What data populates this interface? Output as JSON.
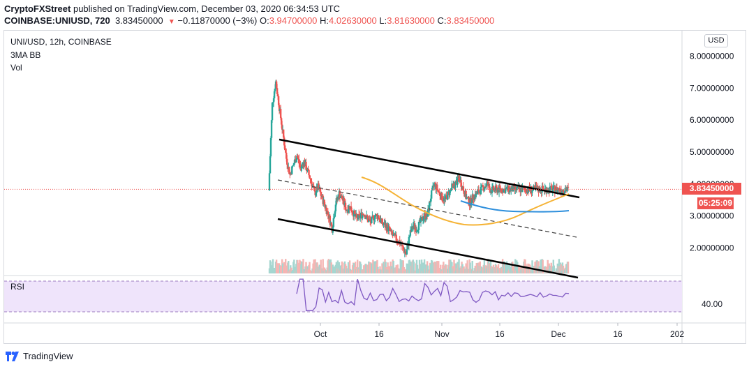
{
  "header": {
    "author": "CryptoFXStreet",
    "published_text": " published on TradingView.com, December 03, 2020 06:34:53 UTC",
    "symbol_full": "COINBASE:UNIUSD, 720",
    "last": "3.83450000",
    "change_arrow": "▼",
    "change": "−0.11870000 (−3%)",
    "o_label": "O:",
    "o": "3.94700000",
    "h_label": "H:",
    "h": "4.02630000",
    "l_label": "L:",
    "l": "3.81630000",
    "c_label": "C:",
    "c": "3.83450000"
  },
  "legend": {
    "title": "UNI/USD, 12h, COINBASE",
    "indicator": "3MA BB",
    "volume": "Vol"
  },
  "currency_button": "USD",
  "price_label": "3.83450000",
  "countdown_label": "05:25:09",
  "rsi_label": "RSI",
  "rsi_tick": "40.00",
  "footer_logo": "TradingView",
  "chart_data": {
    "type": "candlestick",
    "y_ticks": [
      "8.00000000",
      "7.00000000",
      "6.00000000",
      "5.00000000",
      "4.00000000",
      "3.00000000",
      "2.00000000"
    ],
    "y_tick_values": [
      8,
      7,
      6,
      5,
      4,
      3,
      2
    ],
    "x_ticks": [
      "Oct",
      "16",
      "Nov",
      "16",
      "Dec",
      "16",
      "202"
    ],
    "ylim": [
      1.2,
      8.8
    ],
    "last_price": 3.8345,
    "series": [
      {
        "name": "price_close",
        "x_day": [
          0,
          0.5,
          1,
          1.5,
          2,
          2.5,
          3,
          3.5,
          4,
          4.5,
          5,
          6,
          7,
          8,
          9,
          10,
          11,
          12,
          13,
          14,
          15,
          16,
          17,
          18,
          19,
          20,
          21,
          22,
          23,
          24,
          25,
          26,
          27,
          28,
          29,
          30,
          31,
          32,
          33,
          34,
          35,
          36,
          37,
          38,
          39,
          40,
          41,
          42,
          43,
          44,
          45,
          46,
          47,
          48,
          49,
          50,
          51,
          52,
          53,
          54,
          55,
          56,
          57,
          58,
          59,
          60,
          61,
          62,
          63,
          64,
          65,
          66,
          67,
          68,
          69,
          70,
          71,
          72,
          73,
          74,
          75,
          76,
          77,
          78,
          79,
          80
        ],
        "values": [
          3.8,
          6.5,
          7.2,
          6.4,
          5.6,
          4.8,
          4.3,
          4.6,
          4.9,
          4.5,
          4.7,
          4.4,
          4.1,
          3.7,
          3.9,
          3.6,
          3.3,
          3.0,
          2.6,
          3.4,
          3.7,
          3.5,
          3.2,
          3.3,
          3.1,
          2.9,
          3.0,
          3.1,
          2.9,
          2.8,
          3.0,
          3.0,
          2.8,
          2.7,
          2.6,
          2.4,
          2.3,
          2.2,
          2.0,
          1.8,
          2.4,
          2.7,
          2.6,
          2.8,
          3.0,
          3.0,
          3.6,
          4.0,
          3.8,
          3.6,
          3.5,
          3.7,
          3.9,
          4.0,
          4.2,
          3.9,
          3.6,
          3.4,
          3.6,
          3.7,
          3.8,
          3.9,
          4.0,
          3.8,
          3.83,
          3.83,
          3.83,
          3.83,
          3.83,
          3.83,
          3.83,
          3.83,
          3.83,
          3.83,
          3.83,
          3.83,
          3.83,
          3.83,
          3.83,
          3.83,
          3.83,
          3.83,
          3.83,
          3.83,
          3.83,
          3.83
        ]
      }
    ],
    "rsi": {
      "ylim": [
        20,
        80
      ],
      "tick": 40
    }
  }
}
